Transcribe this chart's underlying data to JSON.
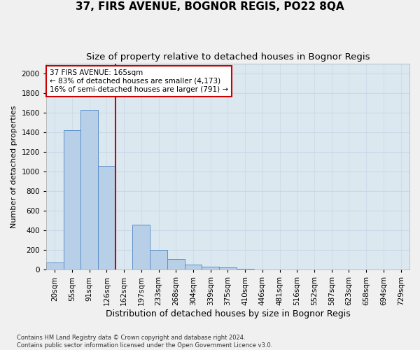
{
  "title1": "37, FIRS AVENUE, BOGNOR REGIS, PO22 8QA",
  "title2": "Size of property relative to detached houses in Bognor Regis",
  "xlabel": "Distribution of detached houses by size in Bognor Regis",
  "ylabel": "Number of detached properties",
  "footnote": "Contains HM Land Registry data © Crown copyright and database right 2024.\nContains public sector information licensed under the Open Government Licence v3.0.",
  "categories": [
    "20sqm",
    "55sqm",
    "91sqm",
    "126sqm",
    "162sqm",
    "197sqm",
    "233sqm",
    "268sqm",
    "304sqm",
    "339sqm",
    "375sqm",
    "410sqm",
    "446sqm",
    "481sqm",
    "516sqm",
    "552sqm",
    "587sqm",
    "623sqm",
    "658sqm",
    "694sqm",
    "729sqm"
  ],
  "values": [
    75,
    1420,
    1630,
    1060,
    0,
    460,
    200,
    110,
    50,
    30,
    20,
    10,
    0,
    0,
    0,
    0,
    0,
    0,
    0,
    0,
    0
  ],
  "bar_color": "#b8cfe8",
  "bar_edge_color": "#5b8fc9",
  "vline_color": "#cc0000",
  "vline_index": 4.0,
  "annotation_text": "37 FIRS AVENUE: 165sqm\n← 83% of detached houses are smaller (4,173)\n16% of semi-detached houses are larger (791) →",
  "annotation_box_color": "#ffffff",
  "annotation_box_edge": "#cc0000",
  "ylim": [
    0,
    2100
  ],
  "yticks": [
    0,
    200,
    400,
    600,
    800,
    1000,
    1200,
    1400,
    1600,
    1800,
    2000
  ],
  "grid_color": "#c8d8e8",
  "background_color": "#dce8f0",
  "fig_background": "#f0f0f0",
  "title1_fontsize": 11,
  "title2_fontsize": 9.5,
  "xlabel_fontsize": 9,
  "ylabel_fontsize": 8,
  "tick_fontsize": 7.5,
  "annot_fontsize": 7.5
}
